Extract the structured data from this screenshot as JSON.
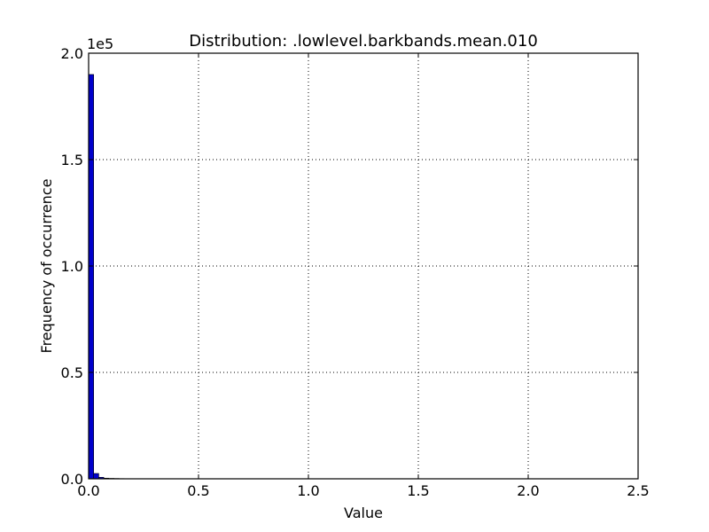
{
  "chart_data": {
    "type": "bar",
    "title": "Distribution: .lowlevel.barkbands.mean.010",
    "xlabel": "Value",
    "ylabel": "Frequency of occurrence",
    "y_scale_label": "1e5",
    "xlim": [
      0,
      2.5
    ],
    "ylim": [
      0,
      200000
    ],
    "x_ticks": [
      {
        "value": 0.0,
        "label": "0.0"
      },
      {
        "value": 0.5,
        "label": "0.5"
      },
      {
        "value": 1.0,
        "label": "1.0"
      },
      {
        "value": 1.5,
        "label": "1.5"
      },
      {
        "value": 2.0,
        "label": "2.0"
      },
      {
        "value": 2.5,
        "label": "2.5"
      }
    ],
    "y_ticks": [
      {
        "value": 0,
        "label": "0.0"
      },
      {
        "value": 50000,
        "label": "0.5"
      },
      {
        "value": 100000,
        "label": "1.0"
      },
      {
        "value": 150000,
        "label": "1.5"
      },
      {
        "value": 200000,
        "label": "2.0"
      }
    ],
    "grid": true,
    "bar_color": "#0000cc",
    "bins": {
      "start": 0.0,
      "end": 2.3,
      "count": 100,
      "values": [
        190000,
        2500,
        700,
        300,
        200,
        150,
        100,
        80,
        60,
        50,
        40,
        30,
        25,
        20,
        18,
        15,
        12,
        10,
        9,
        8,
        7,
        6,
        5,
        5,
        4,
        4,
        3,
        3,
        3,
        2,
        2,
        2,
        2,
        2,
        1,
        1,
        1,
        1,
        1,
        1,
        1,
        1,
        1,
        1,
        1,
        1,
        1,
        1,
        1,
        1,
        1,
        1,
        1,
        1,
        1,
        1,
        1,
        1,
        1,
        1,
        1,
        1,
        1,
        1,
        1,
        1,
        1,
        1,
        1,
        1,
        1,
        1,
        1,
        1,
        1,
        1,
        1,
        1,
        1,
        1,
        1,
        1,
        1,
        1,
        1,
        1,
        1,
        1,
        1,
        1,
        1,
        1,
        1,
        1,
        1,
        1,
        1,
        1,
        1,
        1
      ]
    }
  }
}
